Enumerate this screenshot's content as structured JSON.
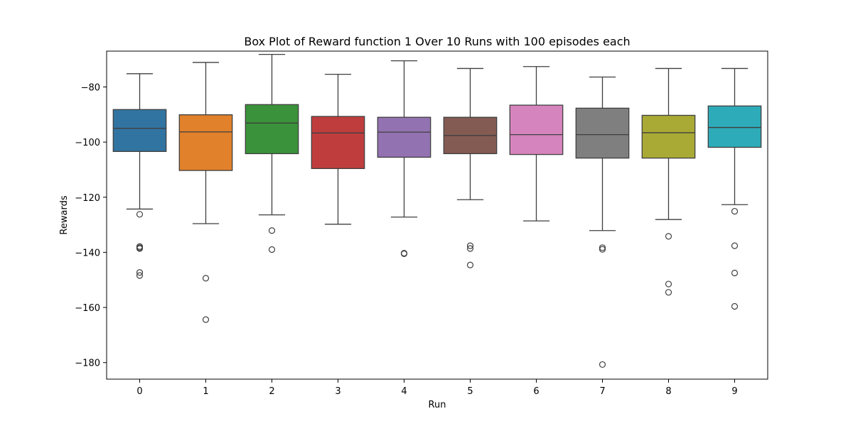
{
  "chart_data": {
    "type": "box",
    "title": "Box Plot of Reward function 1 Over 10 Runs with 100 episodes each",
    "xlabel": "Run",
    "ylabel": "Rewards",
    "ylim": [
      -186,
      -67
    ],
    "yticks": [
      -80,
      -100,
      -120,
      -140,
      -160,
      -180
    ],
    "categories": [
      "0",
      "1",
      "2",
      "3",
      "4",
      "5",
      "6",
      "7",
      "8",
      "9"
    ],
    "colors": [
      "#3274a1",
      "#e1812c",
      "#3a923a",
      "#c03d3e",
      "#9372b2",
      "#845b53",
      "#d684bd",
      "#7f7f7f",
      "#a9aa35",
      "#2eabb8"
    ],
    "series": [
      {
        "run": "0",
        "q1": -103.4,
        "median": -95.0,
        "q3": -88.2,
        "whisker_low": -124.3,
        "whisker_high": -75.2,
        "outliers": [
          -126.2,
          -137.9,
          -138.3,
          -138.6,
          -147.3,
          -148.4
        ]
      },
      {
        "run": "1",
        "q1": -110.3,
        "median": -96.3,
        "q3": -90.1,
        "whisker_low": -129.6,
        "whisker_high": -71.1,
        "outliers": [
          -149.4,
          -164.4
        ]
      },
      {
        "run": "2",
        "q1": -104.2,
        "median": -93.1,
        "q3": -86.4,
        "whisker_low": -126.4,
        "whisker_high": -68.2,
        "outliers": [
          -132.1,
          -139.0
        ]
      },
      {
        "run": "3",
        "q1": -109.6,
        "median": -96.7,
        "q3": -90.7,
        "whisker_low": -129.8,
        "whisker_high": -75.4,
        "outliers": []
      },
      {
        "run": "4",
        "q1": -105.5,
        "median": -96.4,
        "q3": -91.0,
        "whisker_low": -127.2,
        "whisker_high": -70.5,
        "outliers": [
          -140.3,
          -140.5
        ]
      },
      {
        "run": "5",
        "q1": -104.2,
        "median": -97.6,
        "q3": -91.0,
        "whisker_low": -120.9,
        "whisker_high": -73.3,
        "outliers": [
          -137.6,
          -138.6,
          -144.6
        ]
      },
      {
        "run": "6",
        "q1": -104.5,
        "median": -97.3,
        "q3": -86.6,
        "whisker_low": -128.6,
        "whisker_high": -72.6,
        "outliers": []
      },
      {
        "run": "7",
        "q1": -105.8,
        "median": -97.3,
        "q3": -87.7,
        "whisker_low": -132.1,
        "whisker_high": -76.4,
        "outliers": [
          -138.3,
          -138.9,
          -180.7
        ]
      },
      {
        "run": "8",
        "q1": -105.8,
        "median": -96.6,
        "q3": -90.3,
        "whisker_low": -128.1,
        "whisker_high": -73.3,
        "outliers": [
          -134.2,
          -151.5,
          -154.5
        ]
      },
      {
        "run": "9",
        "q1": -101.9,
        "median": -94.7,
        "q3": -86.9,
        "whisker_low": -122.7,
        "whisker_high": -73.3,
        "outliers": [
          -125.1,
          -137.6,
          -147.5,
          -159.6
        ]
      }
    ]
  }
}
